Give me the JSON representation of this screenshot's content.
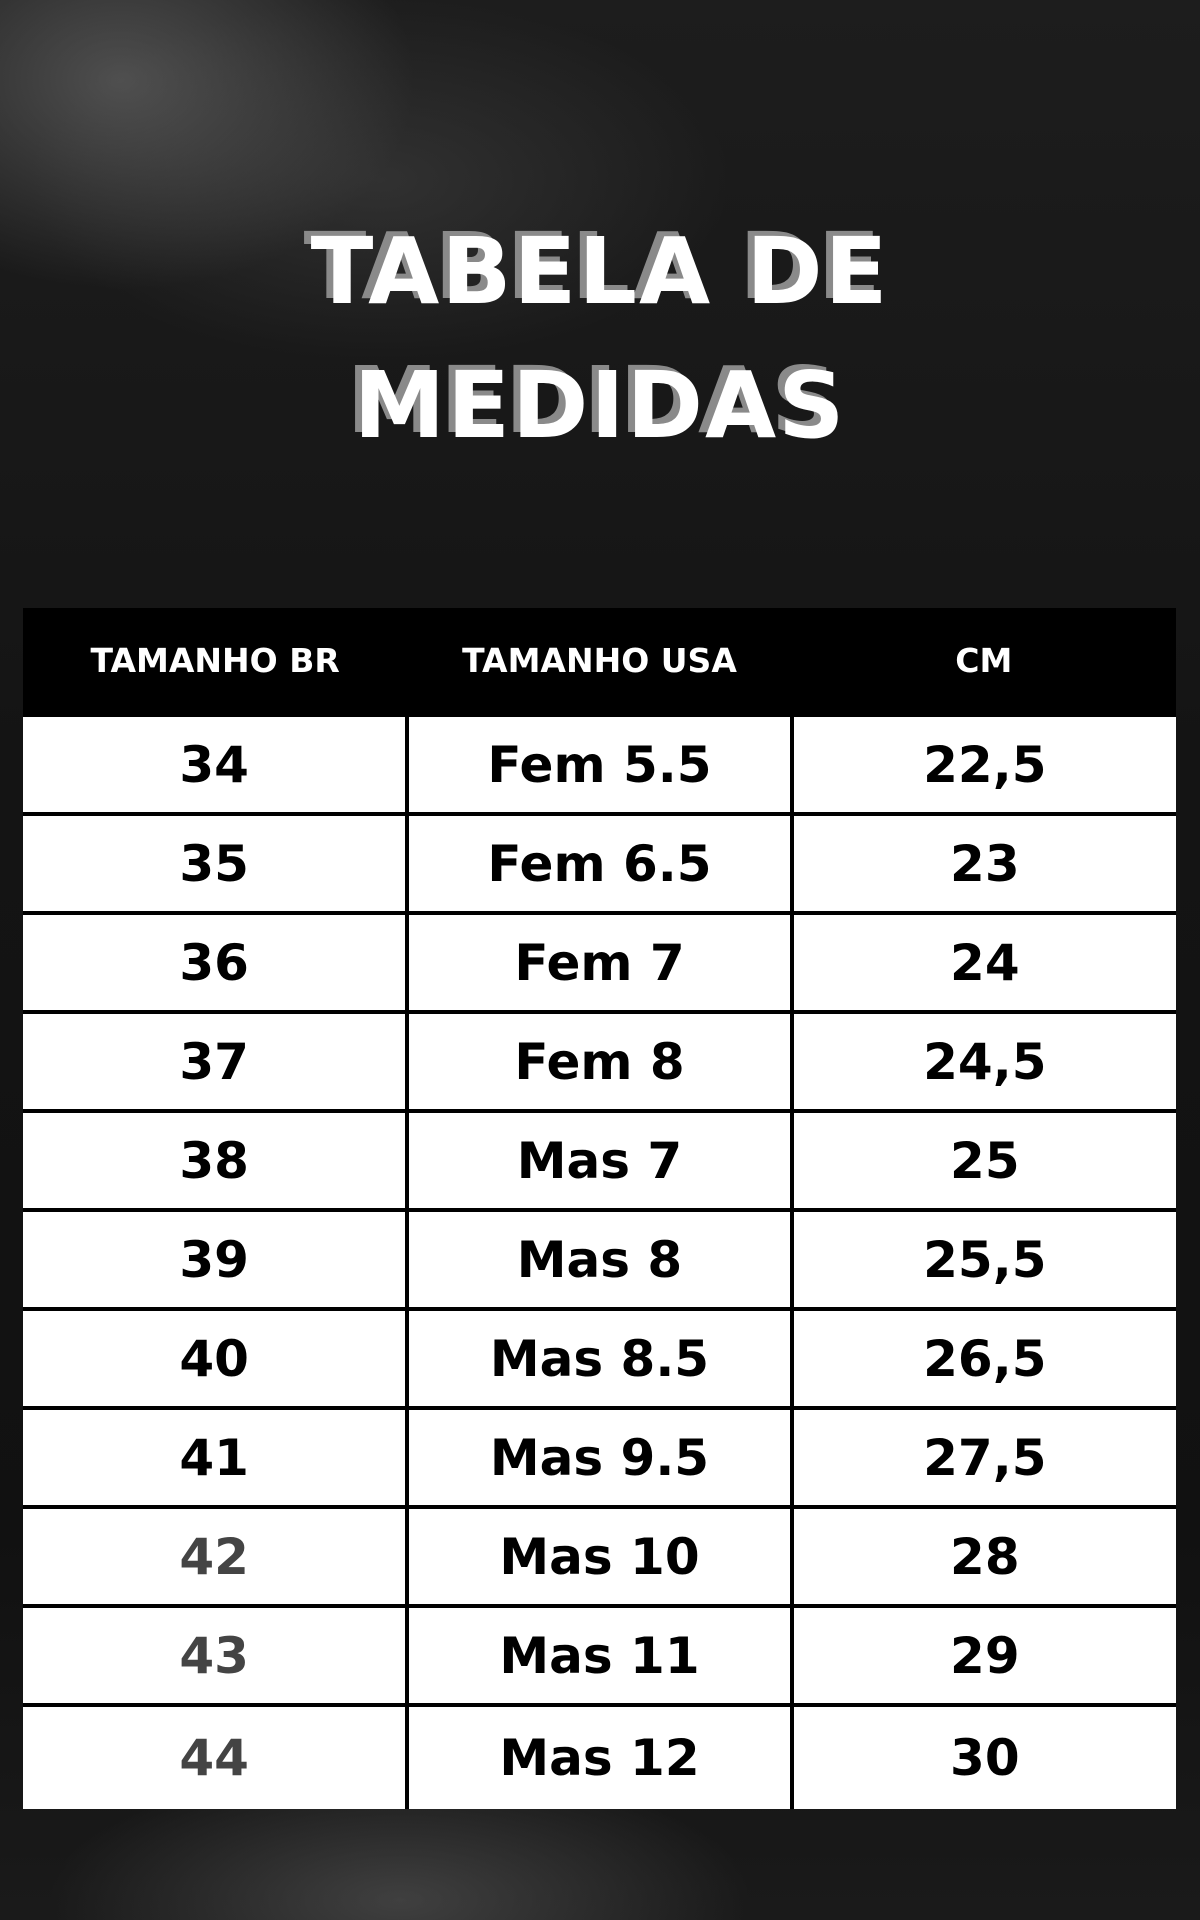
{
  "title": {
    "line1": "TABELA DE",
    "line2": "MEDIDAS"
  },
  "table": {
    "headers": [
      "TAMANHO BR",
      "TAMANHO USA",
      "CM"
    ],
    "rows": [
      [
        "34",
        "Fem 5.5",
        "22,5"
      ],
      [
        "35",
        "Fem 6.5",
        "23"
      ],
      [
        "36",
        "Fem 7",
        "24"
      ],
      [
        "37",
        "Fem 8",
        "24,5"
      ],
      [
        "38",
        "Mas 7",
        "25"
      ],
      [
        "39",
        "Mas 8",
        "25,5"
      ],
      [
        "40",
        "Mas 8.5",
        "26,5"
      ],
      [
        "41",
        "Mas 9.5",
        "27,5"
      ],
      [
        "42",
        "Mas 10",
        "28"
      ],
      [
        "43",
        "Mas 11",
        "29"
      ],
      [
        "44",
        "Mas 12",
        "30"
      ]
    ]
  }
}
